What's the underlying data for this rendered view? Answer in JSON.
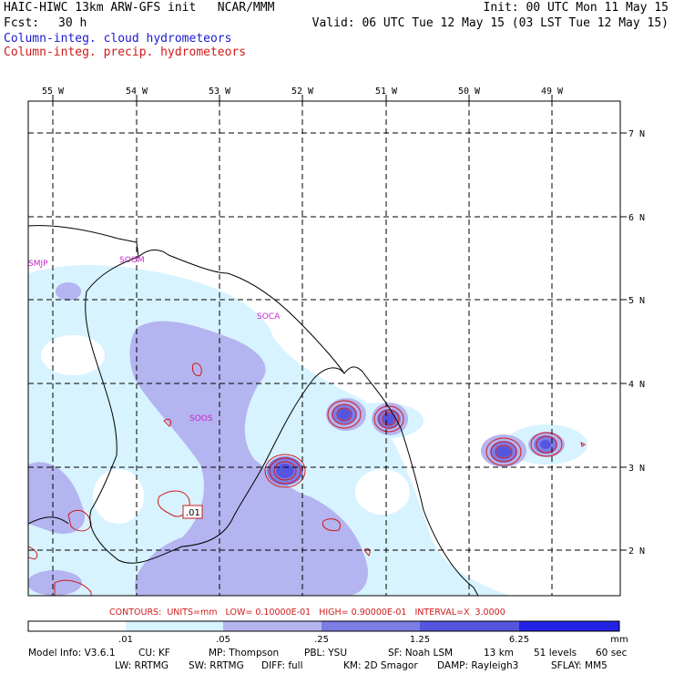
{
  "header": {
    "title": "HAIC-HIWC 13km ARW-GFS init   NCAR/MMM",
    "init": "Init: 00 UTC Mon 11 May 15",
    "fcst_label": "Fcst:",
    "fcst_value": "30 h",
    "valid": "Valid: 06 UTC Tue 12 May 15 (03 LST Tue 12 May 15)",
    "field1": "Column-integ. cloud hydrometeors",
    "field2": "Column-integ. precip. hydrometeors"
  },
  "colors": {
    "field1": "#1a1ad0",
    "field2": "#d01a1a"
  },
  "map": {
    "lon_labels": [
      "55 W",
      "54 W",
      "53 W",
      "52 W",
      "51 W",
      "50 W",
      "49 W"
    ],
    "lat_labels": [
      "7 N",
      "6 N",
      "5 N",
      "4 N",
      "3 N",
      "2 N"
    ],
    "stations": [
      "SMJP",
      "SOOM",
      "SOCA",
      "SOOS"
    ],
    "contour_label": ".01"
  },
  "contours_text": "CONTOURS:  UNITS=mm   LOW= 0.10000E-01   HIGH= 0.90000E-01   INTERVAL=X  3.0000",
  "colorbar": {
    "tick_labels": [
      ".01",
      ".05",
      ".25",
      "1.25",
      "6.25"
    ],
    "unit": "mm",
    "colors": [
      "#ffffff",
      "#d7f3ff",
      "#b4b4f0",
      "#7d7de6",
      "#5555e0",
      "#2222e6"
    ]
  },
  "footer": {
    "line1": [
      "Model Info: V3.6.1",
      "CU: KF",
      "MP: Thompson",
      "PBL: YSU",
      "SF: Noah LSM",
      "13 km",
      "51 levels",
      "60 sec"
    ],
    "line2": [
      "LW: RRTMG",
      "SW: RRTMG",
      "DIFF: full",
      "KM: 2D Smagor",
      "DAMP: Rayleigh3",
      "SFLAY: MM5"
    ]
  }
}
